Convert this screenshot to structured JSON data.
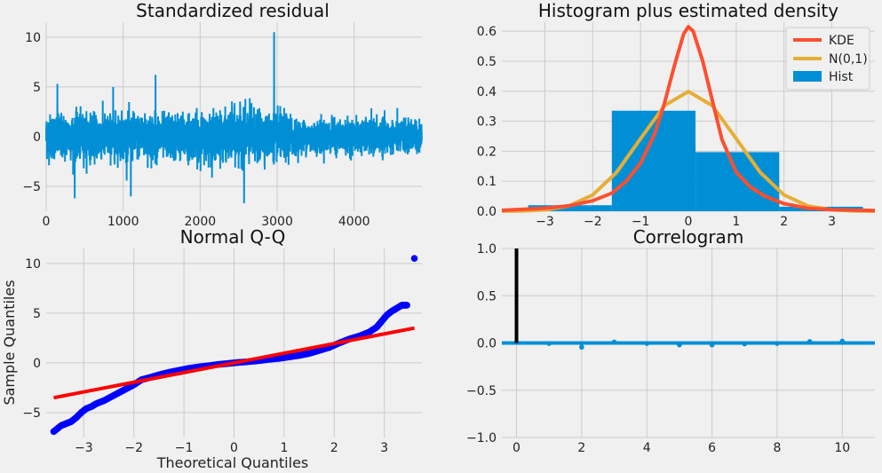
{
  "colors": {
    "background": "#f0f0f0",
    "grid": "#cbcbcb",
    "residual_line": "#008fd5",
    "kde": "#fc4f30",
    "normal": "#e5ae38",
    "hist": "#008fd5",
    "qq_points": "#0000ff",
    "qq_line": "#ff0000",
    "acf_lag0": "#000000",
    "acf_stems": "#008fd5"
  },
  "chart_data": [
    {
      "id": "residual",
      "type": "line",
      "title": "Standardized residual",
      "xlabel": "",
      "ylabel": "",
      "xlim": [
        0,
        4880
      ],
      "ylim": [
        -7.5,
        11.5
      ],
      "xticks": [
        0,
        1000,
        2000,
        3000,
        4000
      ],
      "yticks": [
        -5,
        0,
        5,
        10
      ],
      "grid": true,
      "n_points": 4880,
      "spikes": [
        {
          "x": 2960,
          "y": 10.5
        },
        {
          "x": 2570,
          "y": -6.7
        },
        {
          "x": 370,
          "y": -6.2
        },
        {
          "x": 1420,
          "y": 6.2
        },
        {
          "x": 1100,
          "y": -6.0
        },
        {
          "x": 145,
          "y": 5.3
        },
        {
          "x": 870,
          "y": 5.0
        }
      ]
    },
    {
      "id": "histogram",
      "type": "bar",
      "title": "Histogram plus estimated density",
      "xlim": [
        -3.9,
        3.9
      ],
      "ylim": [
        0,
        0.63
      ],
      "xticks": [
        -3,
        -2,
        -1,
        0,
        1,
        2,
        3
      ],
      "yticks": [
        0.0,
        0.1,
        0.2,
        0.3,
        0.4,
        0.5,
        0.6
      ],
      "legend_position": "top-right",
      "bins": [
        {
          "x0": -3.35,
          "x1": -1.6,
          "value": 0.02
        },
        {
          "x0": -1.6,
          "x1": 0.15,
          "value": 0.335
        },
        {
          "x0": 0.15,
          "x1": 1.9,
          "value": 0.197
        },
        {
          "x0": 1.9,
          "x1": 3.65,
          "value": 0.015
        }
      ],
      "series": [
        {
          "name": "KDE",
          "x": [
            -3.9,
            -3.0,
            -2.5,
            -2.0,
            -1.6,
            -1.3,
            -1.0,
            -0.7,
            -0.5,
            -0.3,
            -0.1,
            0.0,
            0.1,
            0.3,
            0.5,
            0.7,
            1.0,
            1.3,
            1.6,
            2.0,
            2.5,
            3.0,
            3.9
          ],
          "y": [
            0.003,
            0.01,
            0.018,
            0.035,
            0.06,
            0.1,
            0.16,
            0.26,
            0.36,
            0.48,
            0.59,
            0.615,
            0.6,
            0.5,
            0.37,
            0.24,
            0.13,
            0.08,
            0.05,
            0.025,
            0.01,
            0.005,
            0.002
          ]
        },
        {
          "name": "N(0,1)",
          "x": [
            -3.9,
            -3.5,
            -3.0,
            -2.5,
            -2.0,
            -1.5,
            -1.0,
            -0.5,
            0.0,
            0.5,
            1.0,
            1.5,
            2.0,
            2.5,
            3.0,
            3.5,
            3.9
          ],
          "y": [
            0.0002,
            0.0009,
            0.0044,
            0.0175,
            0.054,
            0.1295,
            0.242,
            0.352,
            0.399,
            0.352,
            0.242,
            0.1295,
            0.054,
            0.0175,
            0.0044,
            0.0009,
            0.0002
          ]
        },
        {
          "name": "Hist"
        }
      ]
    },
    {
      "id": "qq",
      "type": "scatter",
      "title": "Normal Q-Q",
      "xlabel": "Theoretical Quantiles",
      "ylabel": "Sample Quantiles",
      "xlim": [
        -3.75,
        3.75
      ],
      "ylim": [
        -7.5,
        11.5
      ],
      "xticks": [
        -3,
        -2,
        -1,
        0,
        1,
        2,
        3
      ],
      "yticks": [
        -5,
        0,
        5,
        10
      ],
      "reference_line": {
        "x": [
          -3.6,
          3.6
        ],
        "y": [
          -3.5,
          3.5
        ]
      },
      "points": [
        [
          -3.6,
          -6.9
        ],
        [
          -3.45,
          -6.3
        ],
        [
          -3.35,
          -6.1
        ],
        [
          -3.25,
          -5.9
        ],
        [
          -3.15,
          -5.5
        ],
        [
          -3.05,
          -5.0
        ],
        [
          -2.95,
          -4.6
        ],
        [
          -2.85,
          -4.4
        ],
        [
          -2.75,
          -4.1
        ],
        [
          -2.6,
          -3.8
        ],
        [
          -2.45,
          -3.4
        ],
        [
          -2.3,
          -3.0
        ],
        [
          -2.15,
          -2.6
        ],
        [
          -2.0,
          -2.2
        ],
        [
          -1.85,
          -1.7
        ],
        [
          -1.7,
          -1.5
        ],
        [
          -1.5,
          -1.2
        ],
        [
          -1.3,
          -0.95
        ],
        [
          -1.1,
          -0.75
        ],
        [
          -0.9,
          -0.55
        ],
        [
          -0.7,
          -0.4
        ],
        [
          -0.5,
          -0.28
        ],
        [
          -0.3,
          -0.15
        ],
        [
          -0.1,
          -0.05
        ],
        [
          0.1,
          0.05
        ],
        [
          0.3,
          0.13
        ],
        [
          0.5,
          0.22
        ],
        [
          0.7,
          0.35
        ],
        [
          0.9,
          0.45
        ],
        [
          1.1,
          0.6
        ],
        [
          1.3,
          0.75
        ],
        [
          1.5,
          0.95
        ],
        [
          1.7,
          1.25
        ],
        [
          1.9,
          1.55
        ],
        [
          2.1,
          2.0
        ],
        [
          2.3,
          2.4
        ],
        [
          2.5,
          2.7
        ],
        [
          2.7,
          3.1
        ],
        [
          2.85,
          3.6
        ],
        [
          2.95,
          4.2
        ],
        [
          3.05,
          4.8
        ],
        [
          3.15,
          5.2
        ],
        [
          3.25,
          5.5
        ],
        [
          3.35,
          5.8
        ],
        [
          3.45,
          5.8
        ],
        [
          3.6,
          10.5
        ]
      ]
    },
    {
      "id": "correlogram",
      "type": "bar",
      "title": "Correlogram",
      "xlim": [
        -0.45,
        11.0
      ],
      "ylim": [
        -1.0,
        1.0
      ],
      "xticks": [
        0,
        2,
        4,
        6,
        8,
        10
      ],
      "yticks": [
        -1.0,
        -0.5,
        0.0,
        0.5,
        1.0
      ],
      "lags": [
        0,
        1,
        2,
        3,
        4,
        5,
        6,
        7,
        8,
        9,
        10
      ],
      "values": [
        1.0,
        -0.005,
        -0.045,
        0.01,
        -0.005,
        -0.02,
        -0.02,
        -0.01,
        -0.005,
        0.015,
        0.02
      ]
    }
  ]
}
